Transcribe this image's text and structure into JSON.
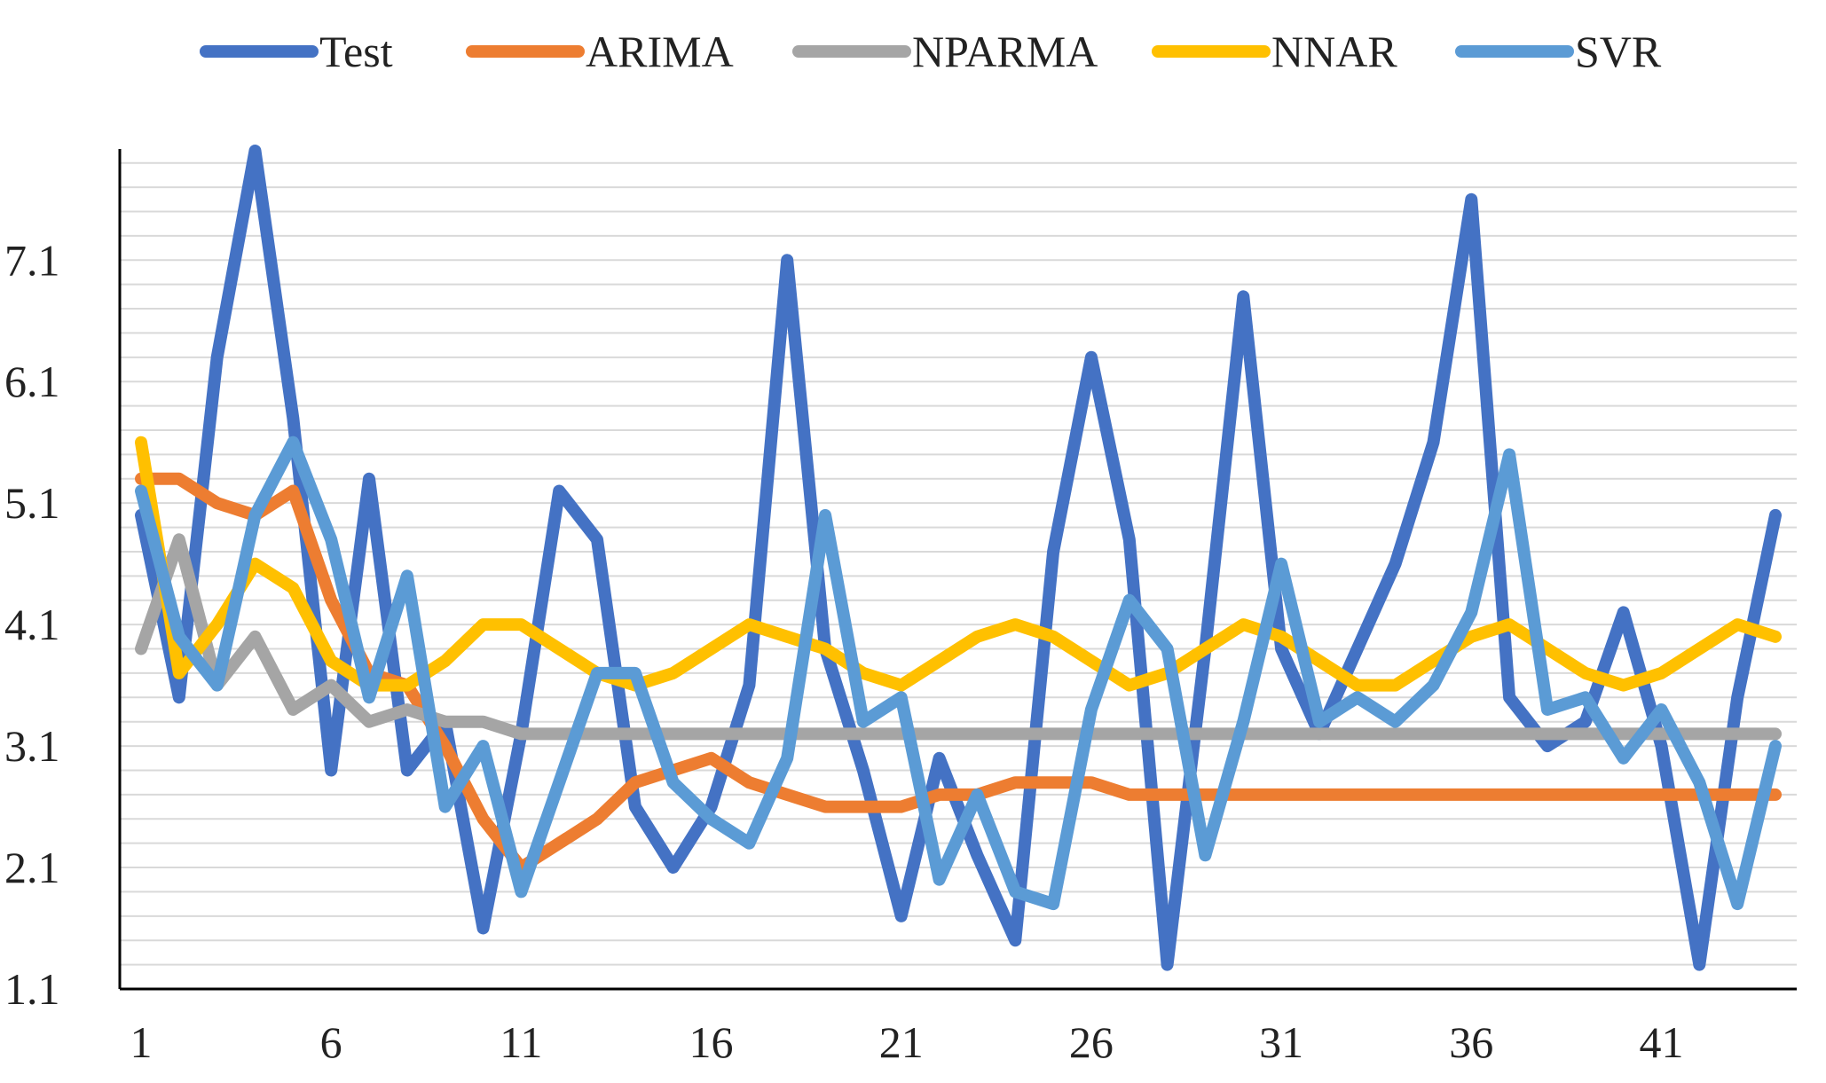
{
  "chart_data": {
    "type": "line",
    "title": "",
    "xlabel": "",
    "ylabel": "",
    "ylim": [
      1.1,
      8.0
    ],
    "x": [
      1,
      2,
      3,
      4,
      5,
      6,
      7,
      8,
      9,
      10,
      11,
      12,
      13,
      14,
      15,
      16,
      17,
      18,
      19,
      20,
      21,
      22,
      23,
      24,
      25,
      26,
      27,
      28,
      29,
      30,
      31,
      32,
      33,
      34,
      35,
      36,
      37,
      38,
      39,
      40,
      41,
      42,
      43,
      44
    ],
    "x_tick_labels": [
      "1",
      "6",
      "11",
      "16",
      "21",
      "26",
      "31",
      "36",
      "41"
    ],
    "x_tick_values": [
      1,
      6,
      11,
      16,
      21,
      26,
      31,
      36,
      41
    ],
    "y_tick_labels": [
      "1.1",
      "2.1",
      "3.1",
      "4.1",
      "5.1",
      "6.1",
      "7.1"
    ],
    "y_tick_values": [
      1.1,
      2.1,
      3.1,
      4.1,
      5.1,
      6.1,
      7.1
    ],
    "grid_minor_step": 0.2,
    "legend_position": "top",
    "series": [
      {
        "name": "Test",
        "color": "#4472c4",
        "values": [
          5.0,
          3.5,
          6.3,
          8.0,
          5.8,
          2.9,
          5.3,
          2.9,
          3.3,
          1.6,
          3.2,
          5.2,
          4.8,
          2.6,
          2.1,
          2.6,
          3.6,
          7.1,
          3.9,
          2.9,
          1.7,
          3.0,
          2.2,
          1.5,
          4.7,
          6.3,
          4.8,
          1.3,
          3.9,
          6.8,
          3.9,
          3.2,
          3.9,
          4.6,
          5.6,
          7.6,
          3.5,
          3.1,
          3.3,
          4.2,
          3.1,
          1.3,
          3.5,
          5.0
        ]
      },
      {
        "name": "ARIMA",
        "color": "#ed7d31",
        "values": [
          5.3,
          5.3,
          5.1,
          5.0,
          5.2,
          4.3,
          3.7,
          3.6,
          3.1,
          2.5,
          2.1,
          2.3,
          2.5,
          2.8,
          2.9,
          3.0,
          2.8,
          2.7,
          2.6,
          2.6,
          2.6,
          2.7,
          2.7,
          2.8,
          2.8,
          2.8,
          2.7,
          2.7,
          2.7,
          2.7,
          2.7,
          2.7,
          2.7,
          2.7,
          2.7,
          2.7,
          2.7,
          2.7,
          2.7,
          2.7,
          2.7,
          2.7,
          2.7,
          2.7
        ]
      },
      {
        "name": "NPARMA",
        "color": "#a5a5a5",
        "values": [
          3.9,
          4.8,
          3.6,
          4.0,
          3.4,
          3.6,
          3.3,
          3.4,
          3.3,
          3.3,
          3.2,
          3.2,
          3.2,
          3.2,
          3.2,
          3.2,
          3.2,
          3.2,
          3.2,
          3.2,
          3.2,
          3.2,
          3.2,
          3.2,
          3.2,
          3.2,
          3.2,
          3.2,
          3.2,
          3.2,
          3.2,
          3.2,
          3.2,
          3.2,
          3.2,
          3.2,
          3.2,
          3.2,
          3.2,
          3.2,
          3.2,
          3.2,
          3.2,
          3.2
        ]
      },
      {
        "name": "NNAR",
        "color": "#ffc000",
        "values": [
          5.6,
          3.7,
          4.1,
          4.6,
          4.4,
          3.8,
          3.6,
          3.6,
          3.8,
          4.1,
          4.1,
          3.9,
          3.7,
          3.6,
          3.7,
          3.9,
          4.1,
          4.0,
          3.9,
          3.7,
          3.6,
          3.8,
          4.0,
          4.1,
          4.0,
          3.8,
          3.6,
          3.7,
          3.9,
          4.1,
          4.0,
          3.8,
          3.6,
          3.6,
          3.8,
          4.0,
          4.1,
          3.9,
          3.7,
          3.6,
          3.7,
          3.9,
          4.1,
          4.0
        ]
      },
      {
        "name": "SVR",
        "color": "#5b9bd5",
        "values": [
          5.2,
          4.0,
          3.6,
          5.0,
          5.6,
          4.8,
          3.5,
          4.5,
          2.6,
          3.1,
          1.9,
          2.8,
          3.7,
          3.7,
          2.8,
          2.5,
          2.3,
          3.0,
          5.0,
          3.3,
          3.5,
          2.0,
          2.7,
          1.9,
          1.8,
          3.4,
          4.3,
          3.9,
          2.2,
          3.3,
          4.6,
          3.3,
          3.5,
          3.3,
          3.6,
          4.2,
          5.5,
          3.4,
          3.5,
          3.0,
          3.4,
          2.8,
          1.8,
          3.1
        ]
      }
    ]
  }
}
